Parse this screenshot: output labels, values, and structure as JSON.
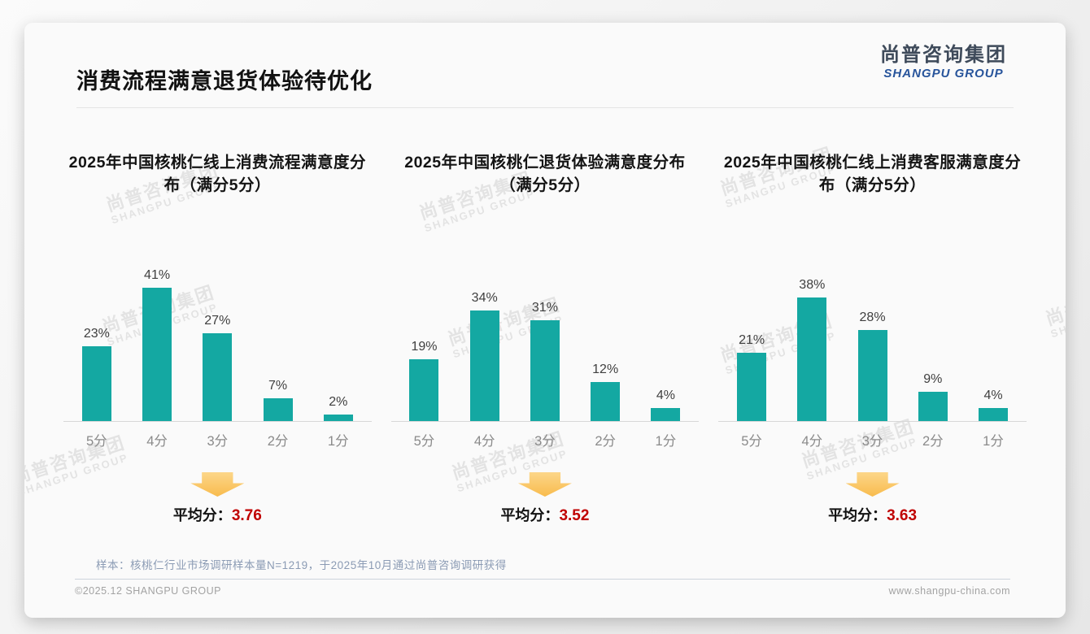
{
  "page": {
    "title": "消费流程满意退货体验待优化",
    "logo": {
      "cn": "尚普咨询集团",
      "en": "SHANGPU GROUP"
    },
    "watermark": {
      "line1": "尚普咨询集团",
      "line2": "SHANGPU GROUP"
    },
    "footer": {
      "note": "样本：核桃仁行业市场调研样本量N=1219，于2025年10月通过尚普咨询调研获得",
      "copyright": "©2025.12 SHANGPU GROUP",
      "website": "www.shangpu-china.com"
    },
    "colors": {
      "bar": "#14a8a2",
      "average_value": "#c00000",
      "arrow_top": "#fcd689",
      "arrow_bottom": "#f8bb4d",
      "logo_blue": "#27549b"
    }
  },
  "chart_data": [
    {
      "type": "bar",
      "title": "2025年中国核桃仁线上消费流程满意度分布（满分5分）",
      "categories": [
        "5分",
        "4分",
        "3分",
        "2分",
        "1分"
      ],
      "values": [
        23,
        41,
        27,
        7,
        2
      ],
      "unit": "%",
      "ylim": [
        0,
        45
      ],
      "grid": false,
      "average_label": "平均分：",
      "average": "3.76"
    },
    {
      "type": "bar",
      "title": "2025年中国核桃仁退货体验满意度分布（满分5分）",
      "categories": [
        "5分",
        "4分",
        "3分",
        "2分",
        "1分"
      ],
      "values": [
        19,
        34,
        31,
        12,
        4
      ],
      "unit": "%",
      "ylim": [
        0,
        45
      ],
      "grid": false,
      "average_label": "平均分：",
      "average": "3.52"
    },
    {
      "type": "bar",
      "title": "2025年中国核桃仁线上消费客服满意度分布（满分5分）",
      "categories": [
        "5分",
        "4分",
        "3分",
        "2分",
        "1分"
      ],
      "values": [
        21,
        38,
        28,
        9,
        4
      ],
      "unit": "%",
      "ylim": [
        0,
        45
      ],
      "grid": false,
      "average_label": "平均分：",
      "average": "3.63"
    }
  ]
}
